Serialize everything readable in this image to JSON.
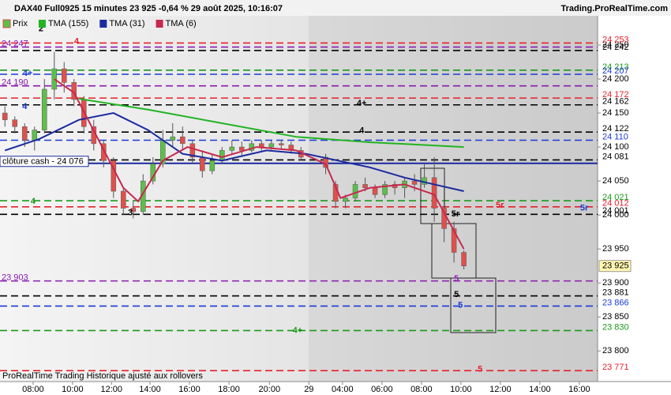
{
  "chart_data": {
    "type": "candlestick",
    "title": "DAX40 Full0925 15 minutes 23 925 -0,64 % 29 août 2025, 10:16:07",
    "source": "Trading.ProRealTime.com",
    "footer": "ProRealTime Trading  Historique ajusté aux rollovers",
    "price_name": "Prix",
    "last_price": {
      "value": 23925,
      "label": "23 925"
    },
    "cash_close": {
      "value": 24076,
      "label": "clôture cash - 24 076",
      "color": "#1a2aa0"
    },
    "up_color": "#5cbf4a",
    "down_color": "#e0504a",
    "x": [
      1,
      3,
      5,
      7,
      9,
      11,
      13,
      15,
      17,
      19,
      21,
      23,
      25,
      27,
      29,
      31,
      33,
      35,
      37,
      39,
      41,
      43,
      45,
      47,
      49,
      51,
      53,
      55,
      57,
      59,
      61,
      66,
      68,
      70,
      72,
      74,
      76,
      78,
      80,
      82,
      84,
      86,
      88,
      90,
      92,
      94
    ],
    "open": [
      24150,
      24140,
      24130,
      24110,
      24125,
      24185,
      24215,
      24195,
      24170,
      24130,
      24105,
      24080,
      24035,
      24010,
      24005,
      24050,
      24075,
      24110,
      24115,
      24105,
      24085,
      24065,
      24080,
      24095,
      24100,
      24095,
      24105,
      24100,
      24105,
      24103,
      24095,
      24085,
      24045,
      24020,
      24025,
      24045,
      24040,
      24030,
      24045,
      24040,
      24050,
      24045,
      24055,
      24010,
      23980,
      23945
    ],
    "high": [
      24160,
      24145,
      24135,
      24130,
      24200,
      24240,
      24225,
      24200,
      24175,
      24140,
      24110,
      24085,
      24040,
      24020,
      24060,
      24085,
      24125,
      24135,
      24130,
      24110,
      24095,
      24090,
      24100,
      24110,
      24108,
      24110,
      24110,
      24110,
      24110,
      24108,
      24100,
      24090,
      24050,
      24030,
      24050,
      24055,
      24045,
      24050,
      24050,
      24055,
      24060,
      24075,
      24085,
      24040,
      23990,
      23948
    ],
    "low": [
      24130,
      24120,
      24100,
      24095,
      24120,
      24170,
      24180,
      24160,
      24120,
      24095,
      24070,
      24025,
      24000,
      23995,
      24000,
      24045,
      24070,
      24100,
      24095,
      24075,
      24055,
      24060,
      24075,
      24090,
      24088,
      24092,
      24095,
      24096,
      24097,
      24090,
      24080,
      24060,
      24010,
      24010,
      24020,
      24035,
      24025,
      24025,
      24030,
      24025,
      24035,
      24040,
      23990,
      23960,
      23930,
      23920
    ],
    "close": [
      24140,
      24130,
      24110,
      24125,
      24185,
      24215,
      24195,
      24170,
      24130,
      24105,
      24080,
      24035,
      24010,
      24005,
      24050,
      24075,
      24110,
      24115,
      24105,
      24085,
      24065,
      24080,
      24095,
      24100,
      24095,
      24105,
      24100,
      24105,
      24103,
      24095,
      24085,
      24070,
      24020,
      24025,
      24045,
      24040,
      24030,
      24045,
      24040,
      24050,
      24045,
      24055,
      24010,
      23980,
      23945,
      23925
    ],
    "series": [
      {
        "name": "TMA (155)",
        "color": "#22b422",
        "x": [
          16,
          30,
          45,
          60,
          75,
          94
        ],
        "values": [
          24171,
          24155,
          24135,
          24115,
          24107,
          24100
        ]
      },
      {
        "name": "TMA (31)",
        "color": "#1a2aa0",
        "x": [
          1,
          8,
          16,
          23,
          30,
          37,
          45,
          54,
          62,
          75,
          82,
          88,
          94
        ],
        "values": [
          24095,
          24112,
          24140,
          24150,
          24125,
          24090,
          24080,
          24095,
          24090,
          24070,
          24055,
          24045,
          24035
        ]
      },
      {
        "name": "TMA (6)",
        "color": "#c8284e",
        "x": [
          11,
          15,
          20,
          25,
          28,
          33,
          38,
          45,
          52,
          60,
          66,
          69,
          75,
          82,
          88,
          91,
          94
        ],
        "values": [
          24200,
          24180,
          24110,
          24040,
          24020,
          24080,
          24100,
          24085,
          24100,
          24095,
          24075,
          24025,
          24040,
          24045,
          24030,
          23990,
          23950
        ]
      }
    ],
    "levels": [
      {
        "value": 24253,
        "label": "24 253",
        "color": "#e8202a",
        "side": "right"
      },
      {
        "value": 24247,
        "label": "24 247",
        "color": "#8a1ab0",
        "side": "left"
      },
      {
        "value": 24242,
        "label": "24 242",
        "color": "#000000",
        "side": "right"
      },
      {
        "value": 24213,
        "label": "24 213",
        "color": "#1a9a1a",
        "side": "right"
      },
      {
        "value": 24207,
        "label": "24 207",
        "color": "#1a3ad8",
        "side": "right"
      },
      {
        "value": 24190,
        "label": "24 190",
        "color": "#8a1ab0",
        "side": "left"
      },
      {
        "value": 24172,
        "label": "24 172",
        "color": "#e8202a",
        "side": "right"
      },
      {
        "value": 24162,
        "label": "24 162",
        "color": "#000000",
        "side": "right"
      },
      {
        "value": 24122,
        "label": "24 122",
        "color": "#000000",
        "side": "right"
      },
      {
        "value": 24110,
        "label": "24 110",
        "color": "#1a3ad8",
        "side": "right"
      },
      {
        "value": 24081,
        "label": "24 081",
        "color": "#000000",
        "side": "right"
      },
      {
        "value": 24021,
        "label": "24 021",
        "color": "#1a9a1a",
        "side": "right"
      },
      {
        "value": 24012,
        "label": "24 012",
        "color": "#e8202a",
        "side": "right"
      },
      {
        "value": 24001,
        "label": "24 001",
        "color": "#000000",
        "side": "right"
      },
      {
        "value": 23903,
        "label": "23 903",
        "color": "#8a1ab0",
        "side": "left"
      },
      {
        "value": 23881,
        "label": "23 881",
        "color": "#000000",
        "side": "right"
      },
      {
        "value": 23866,
        "label": "23 866",
        "color": "#1a3ad8",
        "side": "right"
      },
      {
        "value": 23830,
        "label": "23 830",
        "color": "#1a9a1a",
        "side": "right"
      },
      {
        "value": 23771,
        "label": "23 771",
        "color": "#e8202a",
        "side": "right"
      }
    ],
    "annotations": [
      {
        "text": "2",
        "x": 8.3,
        "y": 24274,
        "color": "#000000"
      },
      {
        "text": "4",
        "x": 15.5,
        "y": 24255,
        "color": "#e8202a"
      },
      {
        "text": "4+",
        "x": 5.6,
        "y": 24208,
        "color": "#1a3ad8"
      },
      {
        "text": "4",
        "x": 5.0,
        "y": 24159,
        "color": "#1a3ad8"
      },
      {
        "text": "4+",
        "x": 73.3,
        "y": 24164,
        "color": "#000000"
      },
      {
        "text": "4",
        "x": 73.3,
        "y": 24124,
        "color": "#000000"
      },
      {
        "text": "4",
        "x": 6.7,
        "y": 24020,
        "color": "#1a9a1a"
      },
      {
        "text": "3",
        "x": 26.4,
        "y": 24003,
        "color": "#000000"
      },
      {
        "text": "5r",
        "x": 92.3,
        "y": 24001,
        "color": "#000000"
      },
      {
        "text": "5r",
        "x": 101.3,
        "y": 24014,
        "color": "#e8202a"
      },
      {
        "text": "5r",
        "x": 118.4,
        "y": 24010,
        "color": "#1a3ad8"
      },
      {
        "text": "5",
        "x": 92.5,
        "y": 23906,
        "color": "#8a1ab0"
      },
      {
        "text": "5",
        "x": 92.5,
        "y": 23883,
        "color": "#000000"
      },
      {
        "text": "5",
        "x": 93.3,
        "y": 23867,
        "color": "#1a3ad8"
      },
      {
        "text": "4+",
        "x": 60.3,
        "y": 23830,
        "color": "#1a9a1a"
      },
      {
        "text": "5",
        "x": 97.3,
        "y": 23773,
        "color": "#e8202a"
      }
    ],
    "xlim": [
      0,
      121.1
    ],
    "xticks": [
      {
        "value": 6.7,
        "label": "08:00"
      },
      {
        "value": 14.7,
        "label": "10:00"
      },
      {
        "value": 22.6,
        "label": "12:00"
      },
      {
        "value": 30.4,
        "label": "14:00"
      },
      {
        "value": 38.4,
        "label": "16:00"
      },
      {
        "value": 46.4,
        "label": "18:00"
      },
      {
        "value": 54.6,
        "label": "20:00"
      },
      {
        "value": 62.6,
        "label": "29"
      },
      {
        "value": 69.4,
        "label": "04:00"
      },
      {
        "value": 77.4,
        "label": "06:00"
      },
      {
        "value": 85.4,
        "label": "08:00"
      },
      {
        "value": 93.4,
        "label": "10:00"
      },
      {
        "value": 101.4,
        "label": "12:00"
      },
      {
        "value": 109.4,
        "label": "14:00"
      },
      {
        "value": 117.4,
        "label": "16:00"
      }
    ],
    "ylim": [
      23755,
      24293
    ],
    "yticks": [
      {
        "value": 23800,
        "label": "23 800"
      },
      {
        "value": 23850,
        "label": "23 850"
      },
      {
        "value": 23900,
        "label": "23 900"
      },
      {
        "value": 23950,
        "label": "23 950"
      },
      {
        "value": 24000,
        "label": "24 000"
      },
      {
        "value": 24050,
        "label": "24 050"
      },
      {
        "value": 24100,
        "label": "24 100"
      },
      {
        "value": 24150,
        "label": "24 150"
      },
      {
        "value": 24200,
        "label": "24 200"
      },
      {
        "value": 24250,
        "label": "24 250"
      }
    ]
  }
}
